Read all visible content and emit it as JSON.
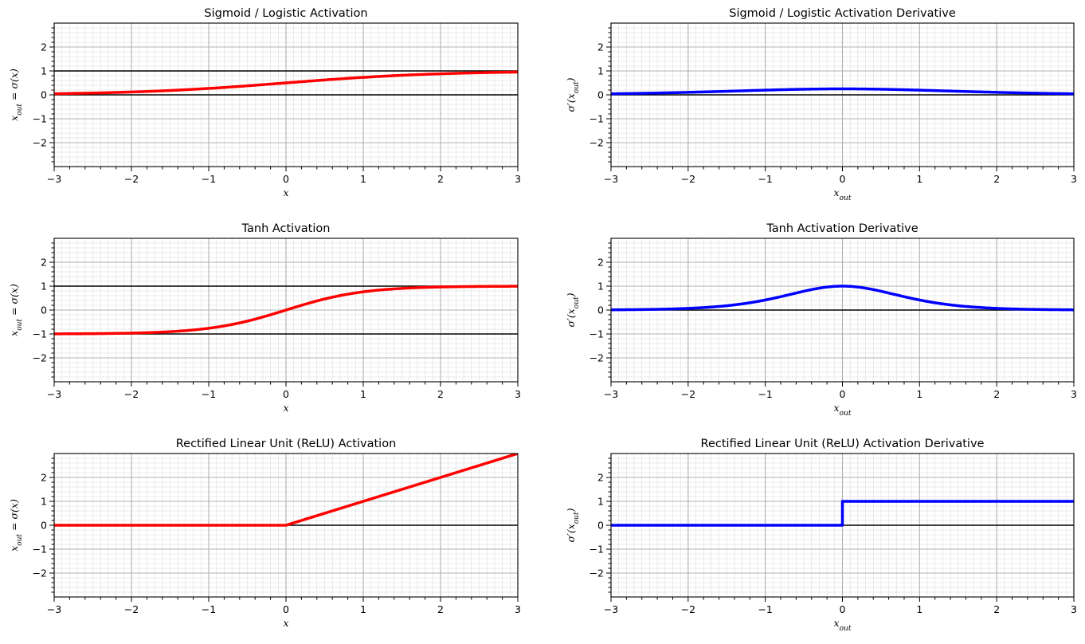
{
  "chart_data": [
    {
      "type": "line",
      "id": "sigmoid",
      "title": "Sigmoid / Logistic Activation",
      "xlabel": "x",
      "ylabel": "x_out = σ(x)",
      "xlabel_parts": [
        {
          "t": "x",
          "kind": "math"
        }
      ],
      "ylabel_parts": [
        {
          "t": "x",
          "kind": "math"
        },
        {
          "t": "out",
          "kind": "sub"
        },
        {
          "t": " = σ(",
          "kind": "math"
        },
        {
          "t": "x",
          "kind": "math"
        },
        {
          "t": ")",
          "kind": "math"
        }
      ],
      "xlim": [
        -3,
        3
      ],
      "ylim": [
        -3,
        3
      ],
      "xticks": [
        -3,
        -2,
        -1,
        0,
        1,
        2,
        3
      ],
      "xtick_labels": [
        "−3",
        "−2",
        "−1",
        "0",
        "1",
        "2",
        "3"
      ],
      "yticks": [
        -2,
        -1,
        0,
        1,
        2
      ],
      "ytick_labels": [
        "−2",
        "−1",
        "0",
        "1",
        "2"
      ],
      "grid": true,
      "reference_lines": [
        0,
        1
      ],
      "series": [
        {
          "name": "sigmoid",
          "color": "#ff0000",
          "function": "sigmoid",
          "sample_values": {
            "x": [
              -3,
              -2,
              -1,
              0,
              1,
              2,
              3
            ],
            "y": [
              0.047,
              0.119,
              0.269,
              0.5,
              0.731,
              0.881,
              0.953
            ]
          }
        }
      ]
    },
    {
      "type": "line",
      "id": "sigmoid-derivative",
      "title": "Sigmoid / Logistic Activation Derivative",
      "xlabel": "x_out",
      "ylabel": "σ'(x_out)",
      "xlabel_parts": [
        {
          "t": "x",
          "kind": "math"
        },
        {
          "t": "out",
          "kind": "sub"
        }
      ],
      "ylabel_parts": [
        {
          "t": "σ′(",
          "kind": "math"
        },
        {
          "t": "x",
          "kind": "math"
        },
        {
          "t": "out",
          "kind": "sub"
        },
        {
          "t": ")",
          "kind": "math"
        }
      ],
      "xlim": [
        -3,
        3
      ],
      "ylim": [
        -3,
        3
      ],
      "xticks": [
        -3,
        -2,
        -1,
        0,
        1,
        2,
        3
      ],
      "xtick_labels": [
        "−3",
        "−2",
        "−1",
        "0",
        "1",
        "2",
        "3"
      ],
      "yticks": [
        -2,
        -1,
        0,
        1,
        2
      ],
      "ytick_labels": [
        "−2",
        "−1",
        "0",
        "1",
        "2"
      ],
      "grid": true,
      "reference_lines": [
        0
      ],
      "series": [
        {
          "name": "sigmoid-derivative",
          "color": "#0000ff",
          "function": "sigmoid_derivative",
          "sample_values": {
            "x": [
              -3,
              -2,
              -1,
              0,
              1,
              2,
              3
            ],
            "y": [
              0.045,
              0.105,
              0.197,
              0.25,
              0.197,
              0.105,
              0.045
            ]
          }
        }
      ]
    },
    {
      "type": "line",
      "id": "tanh",
      "title": "Tanh Activation",
      "xlabel": "x",
      "ylabel": "x_out = σ(x)",
      "xlabel_parts": [
        {
          "t": "x",
          "kind": "math"
        }
      ],
      "ylabel_parts": [
        {
          "t": "x",
          "kind": "math"
        },
        {
          "t": "out",
          "kind": "sub"
        },
        {
          "t": " = σ(",
          "kind": "math"
        },
        {
          "t": "x",
          "kind": "math"
        },
        {
          "t": ")",
          "kind": "math"
        }
      ],
      "xlim": [
        -3,
        3
      ],
      "ylim": [
        -3,
        3
      ],
      "xticks": [
        -3,
        -2,
        -1,
        0,
        1,
        2,
        3
      ],
      "xtick_labels": [
        "−3",
        "−2",
        "−1",
        "0",
        "1",
        "2",
        "3"
      ],
      "yticks": [
        -2,
        -1,
        0,
        1,
        2
      ],
      "ytick_labels": [
        "−2",
        "−1",
        "0",
        "1",
        "2"
      ],
      "grid": true,
      "reference_lines": [
        -1,
        1
      ],
      "series": [
        {
          "name": "tanh",
          "color": "#ff0000",
          "function": "tanh",
          "sample_values": {
            "x": [
              -3,
              -2,
              -1,
              0,
              1,
              2,
              3
            ],
            "y": [
              -0.995,
              -0.964,
              -0.762,
              0,
              0.762,
              0.964,
              0.995
            ]
          }
        }
      ]
    },
    {
      "type": "line",
      "id": "tanh-derivative",
      "title": "Tanh Activation Derivative",
      "xlabel": "x_out",
      "ylabel": "σ'(x_out)",
      "xlabel_parts": [
        {
          "t": "x",
          "kind": "math"
        },
        {
          "t": "out",
          "kind": "sub"
        }
      ],
      "ylabel_parts": [
        {
          "t": "σ′(",
          "kind": "math"
        },
        {
          "t": "x",
          "kind": "math"
        },
        {
          "t": "out",
          "kind": "sub"
        },
        {
          "t": ")",
          "kind": "math"
        }
      ],
      "xlim": [
        -3,
        3
      ],
      "ylim": [
        -3,
        3
      ],
      "xticks": [
        -3,
        -2,
        -1,
        0,
        1,
        2,
        3
      ],
      "xtick_labels": [
        "−3",
        "−2",
        "−1",
        "0",
        "1",
        "2",
        "3"
      ],
      "yticks": [
        -2,
        -1,
        0,
        1,
        2
      ],
      "ytick_labels": [
        "−2",
        "−1",
        "0",
        "1",
        "2"
      ],
      "grid": true,
      "reference_lines": [
        0
      ],
      "series": [
        {
          "name": "tanh-derivative",
          "color": "#0000ff",
          "function": "tanh_derivative",
          "sample_values": {
            "x": [
              -3,
              -2,
              -1,
              0,
              1,
              2,
              3
            ],
            "y": [
              0.01,
              0.071,
              0.42,
              1,
              0.42,
              0.071,
              0.01
            ]
          }
        }
      ]
    },
    {
      "type": "line",
      "id": "relu",
      "title": "Rectified Linear Unit (ReLU) Activation",
      "xlabel": "x",
      "ylabel": "x_out = σ(x)",
      "xlabel_parts": [
        {
          "t": "x",
          "kind": "math"
        }
      ],
      "ylabel_parts": [
        {
          "t": "x",
          "kind": "math"
        },
        {
          "t": "out",
          "kind": "sub"
        },
        {
          "t": " = σ(",
          "kind": "math"
        },
        {
          "t": "x",
          "kind": "math"
        },
        {
          "t": ")",
          "kind": "math"
        }
      ],
      "xlim": [
        -3,
        3
      ],
      "ylim": [
        -3,
        3
      ],
      "xticks": [
        -3,
        -2,
        -1,
        0,
        1,
        2,
        3
      ],
      "xtick_labels": [
        "−3",
        "−2",
        "−1",
        "0",
        "1",
        "2",
        "3"
      ],
      "yticks": [
        -2,
        -1,
        0,
        1,
        2
      ],
      "ytick_labels": [
        "−2",
        "−1",
        "0",
        "1",
        "2"
      ],
      "grid": true,
      "reference_lines": [
        0
      ],
      "series": [
        {
          "name": "relu",
          "color": "#ff0000",
          "function": "relu",
          "sample_values": {
            "x": [
              -3,
              -2,
              -1,
              0,
              1,
              2,
              3
            ],
            "y": [
              0,
              0,
              0,
              0,
              1,
              2,
              3
            ]
          }
        }
      ]
    },
    {
      "type": "line",
      "id": "relu-derivative",
      "title": "Rectified Linear Unit (ReLU) Activation Derivative",
      "xlabel": "x_out",
      "ylabel": "σ'(x_out)",
      "xlabel_parts": [
        {
          "t": "x",
          "kind": "math"
        },
        {
          "t": "out",
          "kind": "sub"
        }
      ],
      "ylabel_parts": [
        {
          "t": "σ′(",
          "kind": "math"
        },
        {
          "t": "x",
          "kind": "math"
        },
        {
          "t": "out",
          "kind": "sub"
        },
        {
          "t": ")",
          "kind": "math"
        }
      ],
      "xlim": [
        -3,
        3
      ],
      "ylim": [
        -3,
        3
      ],
      "xticks": [
        -3,
        -2,
        -1,
        0,
        1,
        2,
        3
      ],
      "xtick_labels": [
        "−3",
        "−2",
        "−1",
        "0",
        "1",
        "2",
        "3"
      ],
      "yticks": [
        -2,
        -1,
        0,
        1,
        2
      ],
      "ytick_labels": [
        "−2",
        "−1",
        "0",
        "1",
        "2"
      ],
      "grid": true,
      "reference_lines": [
        0
      ],
      "series": [
        {
          "name": "relu-derivative",
          "color": "#0000ff",
          "function": "relu_derivative",
          "sample_values": {
            "x": [
              -3,
              -2,
              -1,
              0,
              1,
              2,
              3
            ],
            "y": [
              0,
              0,
              0,
              1,
              1,
              1,
              1
            ]
          }
        }
      ]
    }
  ]
}
